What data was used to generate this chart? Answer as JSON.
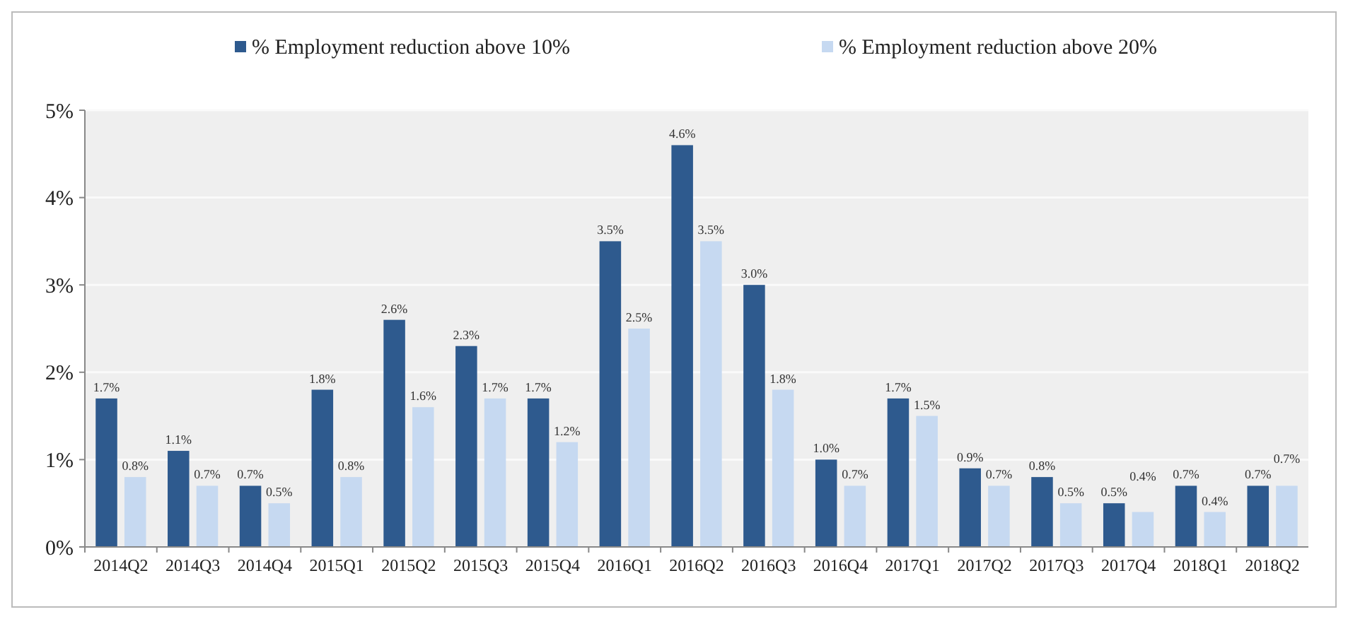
{
  "chart_data": {
    "type": "bar",
    "categories": [
      "2014Q2",
      "2014Q3",
      "2014Q4",
      "2015Q1",
      "2015Q2",
      "2015Q3",
      "2015Q4",
      "2016Q1",
      "2016Q2",
      "2016Q3",
      "2016Q4",
      "2017Q1",
      "2017Q2",
      "2017Q3",
      "2017Q4",
      "2018Q1",
      "2018Q2"
    ],
    "series": [
      {
        "name": "% Employment reduction above 10%",
        "color": "#2e5a8e",
        "values": [
          1.7,
          1.1,
          0.7,
          1.8,
          2.6,
          2.3,
          1.7,
          3.5,
          4.6,
          3.0,
          1.0,
          1.7,
          0.9,
          0.8,
          0.5,
          0.7,
          0.7
        ],
        "value_labels": [
          "1.7%",
          "1.1%",
          "0.7%",
          "1.8%",
          "2.6%",
          "2.3%",
          "1.7%",
          "3.5%",
          "4.6%",
          "3.0%",
          "1.0%",
          "1.7%",
          "0.9%",
          "0.8%",
          "0.5%",
          "0.7%",
          "0.7%"
        ]
      },
      {
        "name": "% Employment reduction above 20%",
        "color": "#c6d9f1",
        "values": [
          0.8,
          0.7,
          0.5,
          0.8,
          1.6,
          1.7,
          1.2,
          2.5,
          3.5,
          1.8,
          0.7,
          1.5,
          0.7,
          0.5,
          0.4,
          0.4,
          0.7
        ],
        "value_labels": [
          "0.8%",
          "0.7%",
          "0.5%",
          "0.8%",
          "1.6%",
          "1.7%",
          "1.2%",
          "2.5%",
          "3.5%",
          "1.8%",
          "0.7%",
          "1.5%",
          "0.7%",
          "0.5%",
          "0.4%",
          "0.4%",
          "0.7%"
        ]
      }
    ],
    "ylim": [
      0,
      5
    ],
    "yticks": [
      {
        "value": 0,
        "label": "0%"
      },
      {
        "value": 1,
        "label": "1%"
      },
      {
        "value": 2,
        "label": "2%"
      },
      {
        "value": 3,
        "label": "3%"
      },
      {
        "value": 4,
        "label": "4%"
      },
      {
        "value": 5,
        "label": "5%"
      }
    ],
    "grid": "y",
    "legend": "top"
  }
}
